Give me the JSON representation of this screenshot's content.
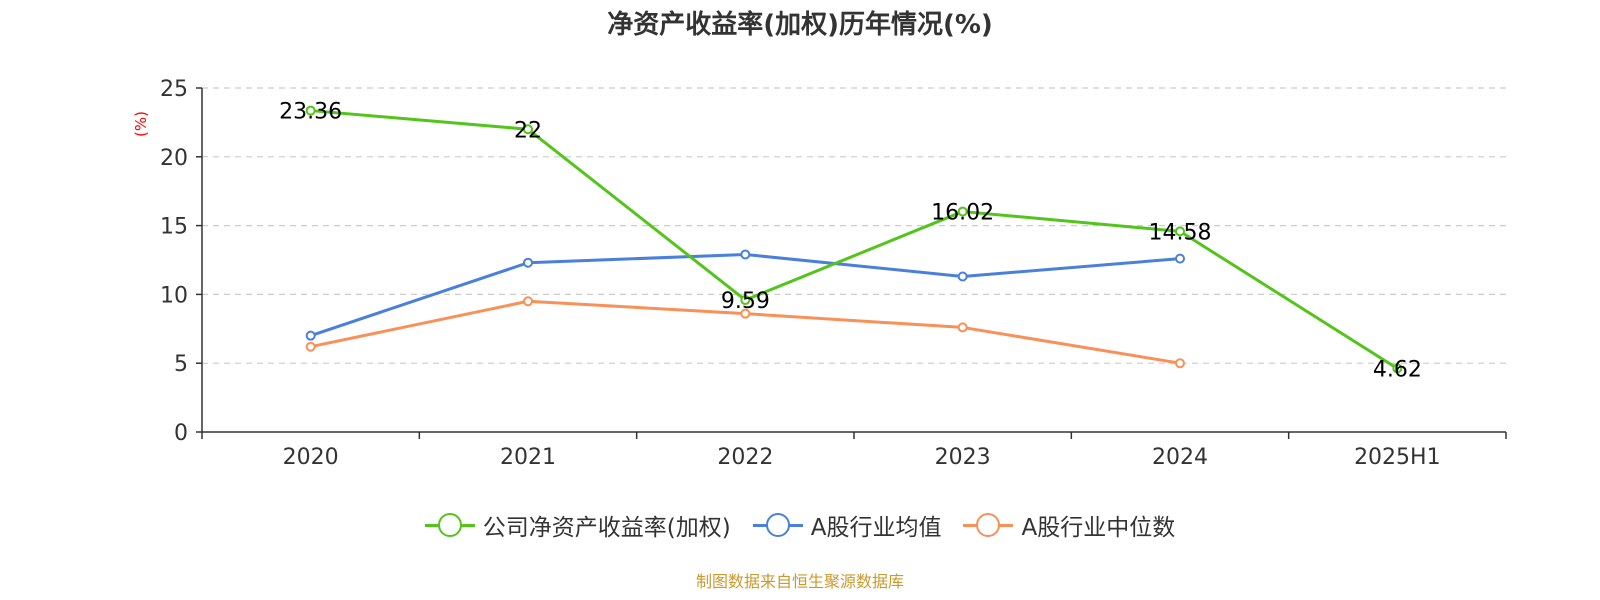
{
  "title": "净资产收益率(加权)历年情况(%)",
  "source": "制图数据来自恒生聚源数据库",
  "source_color": "#c89a2e",
  "chart_data": {
    "type": "line",
    "title": "净资产收益率(加权)历年情况(%)",
    "xlabel": "",
    "ylabel": "(%)",
    "ylabel_color": "#ff0000",
    "categories": [
      "2020",
      "2021",
      "2022",
      "2023",
      "2024",
      "2025H1"
    ],
    "ylim": [
      0,
      25
    ],
    "yticks": [
      0,
      5,
      10,
      15,
      20,
      25
    ],
    "grid": true,
    "legend_position": "bottom",
    "series": [
      {
        "name": "公司净资产收益率(加权)",
        "color": "#52c41a",
        "values": [
          23.36,
          22,
          9.59,
          16.02,
          14.58,
          4.62
        ],
        "show_labels": true
      },
      {
        "name": "A股行业均值",
        "color": "#4a7fdb",
        "values": [
          7.0,
          12.3,
          12.9,
          11.3,
          12.6,
          null
        ],
        "show_labels": false
      },
      {
        "name": "A股行业中位数",
        "color": "#f99058",
        "values": [
          6.2,
          9.5,
          8.6,
          7.6,
          5.0,
          null
        ],
        "show_labels": false
      }
    ]
  }
}
